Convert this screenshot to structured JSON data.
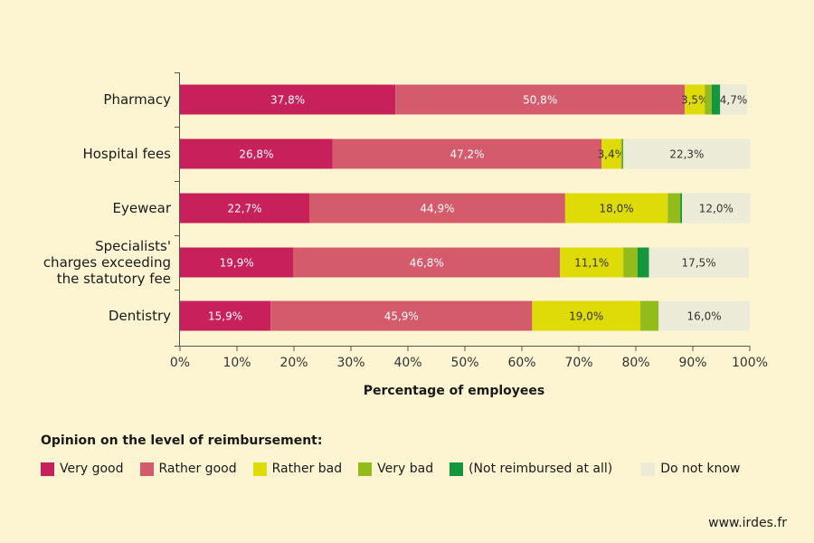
{
  "chart_data": {
    "type": "bar",
    "orientation": "horizontal-stacked-100",
    "categories": [
      "Pharmacy",
      "Hospital fees",
      "Eyewear",
      "Specialists'\ncharges exceeding\nthe statutory fee",
      "Dentistry"
    ],
    "series": [
      {
        "name": "Very good",
        "color": "#c8205a",
        "values": [
          37.8,
          26.8,
          22.7,
          19.9,
          15.9
        ],
        "labels": [
          "37,8%",
          "26,8%",
          "22,7%",
          "19,9%",
          "15,9%"
        ]
      },
      {
        "name": "Rather good",
        "color": "#d45b6b",
        "values": [
          50.8,
          47.2,
          44.9,
          46.8,
          45.9
        ],
        "labels": [
          "50,8%",
          "47,2%",
          "44,9%",
          "46,8%",
          "45,9%"
        ]
      },
      {
        "name": "Rather bad",
        "color": "#dedb08",
        "values": [
          3.5,
          3.4,
          18.0,
          11.1,
          19.0
        ],
        "labels": [
          "3,5%",
          "3,4%",
          "18,0%",
          "11,1%",
          "19,0%"
        ]
      },
      {
        "name": "Very bad",
        "color": "#93bb1c",
        "values": [
          1.2,
          0.3,
          2.2,
          2.5,
          3.2
        ],
        "labels": [
          "",
          "",
          "",
          "",
          ""
        ]
      },
      {
        "name": "(Not reimbursed at all)",
        "color": "#14963e",
        "values": [
          1.5,
          0.1,
          0.3,
          2.0,
          0.0
        ],
        "labels": [
          "",
          "",
          "",
          "",
          ""
        ]
      },
      {
        "name": "Do not know",
        "color": "#ecebd8",
        "values": [
          4.7,
          22.3,
          12.0,
          17.5,
          16.0
        ],
        "labels": [
          "4,7%",
          "22,3%",
          "12,0%",
          "17,5%",
          "16,0%"
        ]
      }
    ],
    "xlabel": "Percentage of employees",
    "xlim": [
      0,
      100
    ],
    "xticks": [
      "0%",
      "10%",
      "20%",
      "30%",
      "40%",
      "50%",
      "60%",
      "70%",
      "80%",
      "90%",
      "100%"
    ],
    "grid": false,
    "legend_position": "bottom"
  },
  "legend": {
    "title": "Opinion on the level of reimbursement:",
    "items": [
      {
        "label": "Very good",
        "color": "#c8205a"
      },
      {
        "label": "Rather good",
        "color": "#d45b6b"
      },
      {
        "label": "Rather bad",
        "color": "#dedb08"
      },
      {
        "label": "Very bad",
        "color": "#93bb1c"
      },
      {
        "label": "(Not reimbursed at all)",
        "color": "#14963e"
      },
      {
        "label": "Do not know",
        "color": "#ecebd8"
      }
    ]
  },
  "source": "www.irdes.fr"
}
